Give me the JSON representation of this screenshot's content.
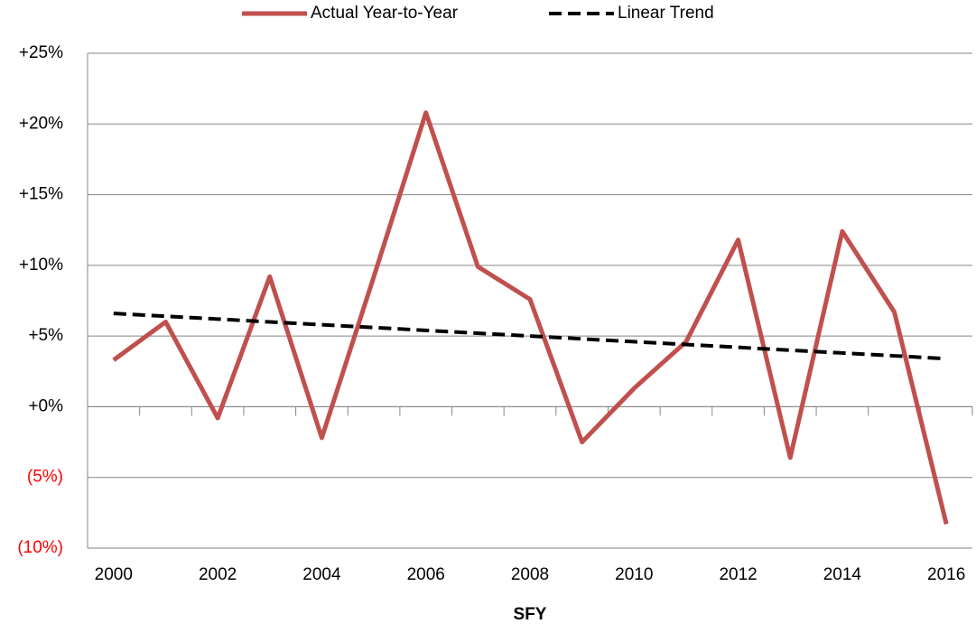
{
  "chart_data": {
    "type": "line",
    "x_label": "SFY",
    "categories": [
      "2000",
      null,
      "2002",
      null,
      "2004",
      null,
      "2006",
      null,
      "2008",
      null,
      "2010",
      null,
      "2012",
      null,
      "2014",
      null,
      "2016"
    ],
    "series": [
      {
        "name": "Actual Year-to-Year",
        "color": "#c0504d",
        "dashed": false,
        "values": [
          3.3,
          6.0,
          -0.8,
          9.2,
          -2.2,
          9.2,
          20.8,
          9.9,
          7.6,
          -2.5,
          1.3,
          4.6,
          11.8,
          -3.6,
          12.4,
          6.7,
          -8.3
        ]
      },
      {
        "name": "Linear Trend",
        "color": "#000000",
        "dashed": true,
        "values": [
          6.6,
          6.4,
          6.2,
          6.0,
          5.8,
          5.6,
          5.4,
          5.2,
          5.0,
          4.8,
          4.6,
          4.4,
          4.2,
          4.0,
          3.8,
          3.6,
          3.4
        ]
      }
    ],
    "ylim": [
      -10,
      25
    ],
    "yticks": [
      {
        "value": 25,
        "label": "+25%"
      },
      {
        "value": 20,
        "label": "+20%"
      },
      {
        "value": 15,
        "label": "+15%"
      },
      {
        "value": 10,
        "label": "+10%"
      },
      {
        "value": 5,
        "label": "+5%"
      },
      {
        "value": 0,
        "label": "+0%"
      },
      {
        "value": -5,
        "label": "(5%)"
      },
      {
        "value": -10,
        "label": "(10%)"
      }
    ],
    "negative_tick_color": "#ff0000",
    "grid": true,
    "legend": "top"
  }
}
